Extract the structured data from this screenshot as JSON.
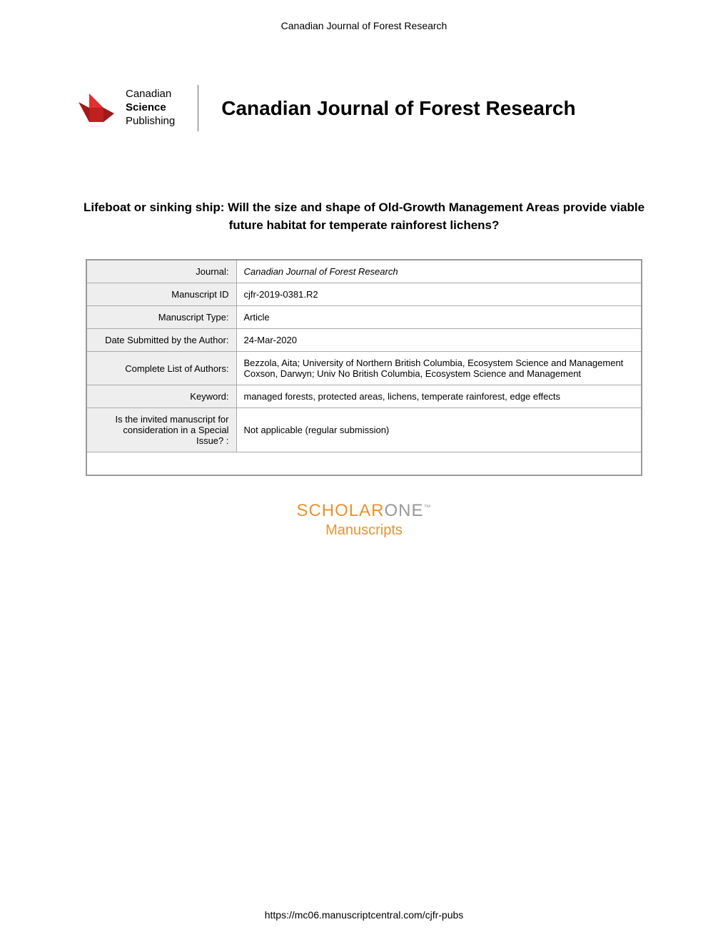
{
  "header": {
    "journal_name": "Canadian Journal of Forest Research"
  },
  "logo": {
    "publisher_line1": "Canadian",
    "publisher_line2": "Science",
    "publisher_line3": "Publishing",
    "journal_title": "Canadian Journal of Forest Research",
    "logo_color_dark": "#a01818",
    "logo_color_light": "#e03030"
  },
  "article": {
    "title": "Lifeboat or sinking ship: Will the size and shape of Old-Growth Management Areas provide viable future habitat for temperate rainforest lichens?"
  },
  "metadata": {
    "rows": [
      {
        "label": "Journal:",
        "value": "Canadian Journal of Forest Research",
        "italic": true
      },
      {
        "label": "Manuscript ID",
        "value": "cjfr-2019-0381.R2",
        "italic": false
      },
      {
        "label": "Manuscript Type:",
        "value": "Article",
        "italic": false
      },
      {
        "label": "Date Submitted by the Author:",
        "value": "24-Mar-2020",
        "italic": false
      },
      {
        "label": "Complete List of Authors:",
        "value": "Bezzola, Aita; University of Northern British Columbia, Ecosystem Science and Management\nCoxson, Darwyn; Univ No British Columbia, Ecosystem Science and Management",
        "italic": false
      },
      {
        "label": "Keyword:",
        "value": "managed forests, protected areas, lichens, temperate rainforest, edge effects",
        "italic": false
      },
      {
        "label": "Is the invited manuscript for consideration in a Special Issue? :",
        "value": "Not applicable (regular submission)",
        "italic": false
      }
    ]
  },
  "scholarone": {
    "title_part1": "SCHOLAR",
    "title_part2": "ONE",
    "tm": "™",
    "subtitle": "Manuscripts",
    "color_orange": "#e8932e",
    "color_gray": "#999999"
  },
  "footer": {
    "url": "https://mc06.manuscriptcentral.com/cjfr-pubs"
  }
}
